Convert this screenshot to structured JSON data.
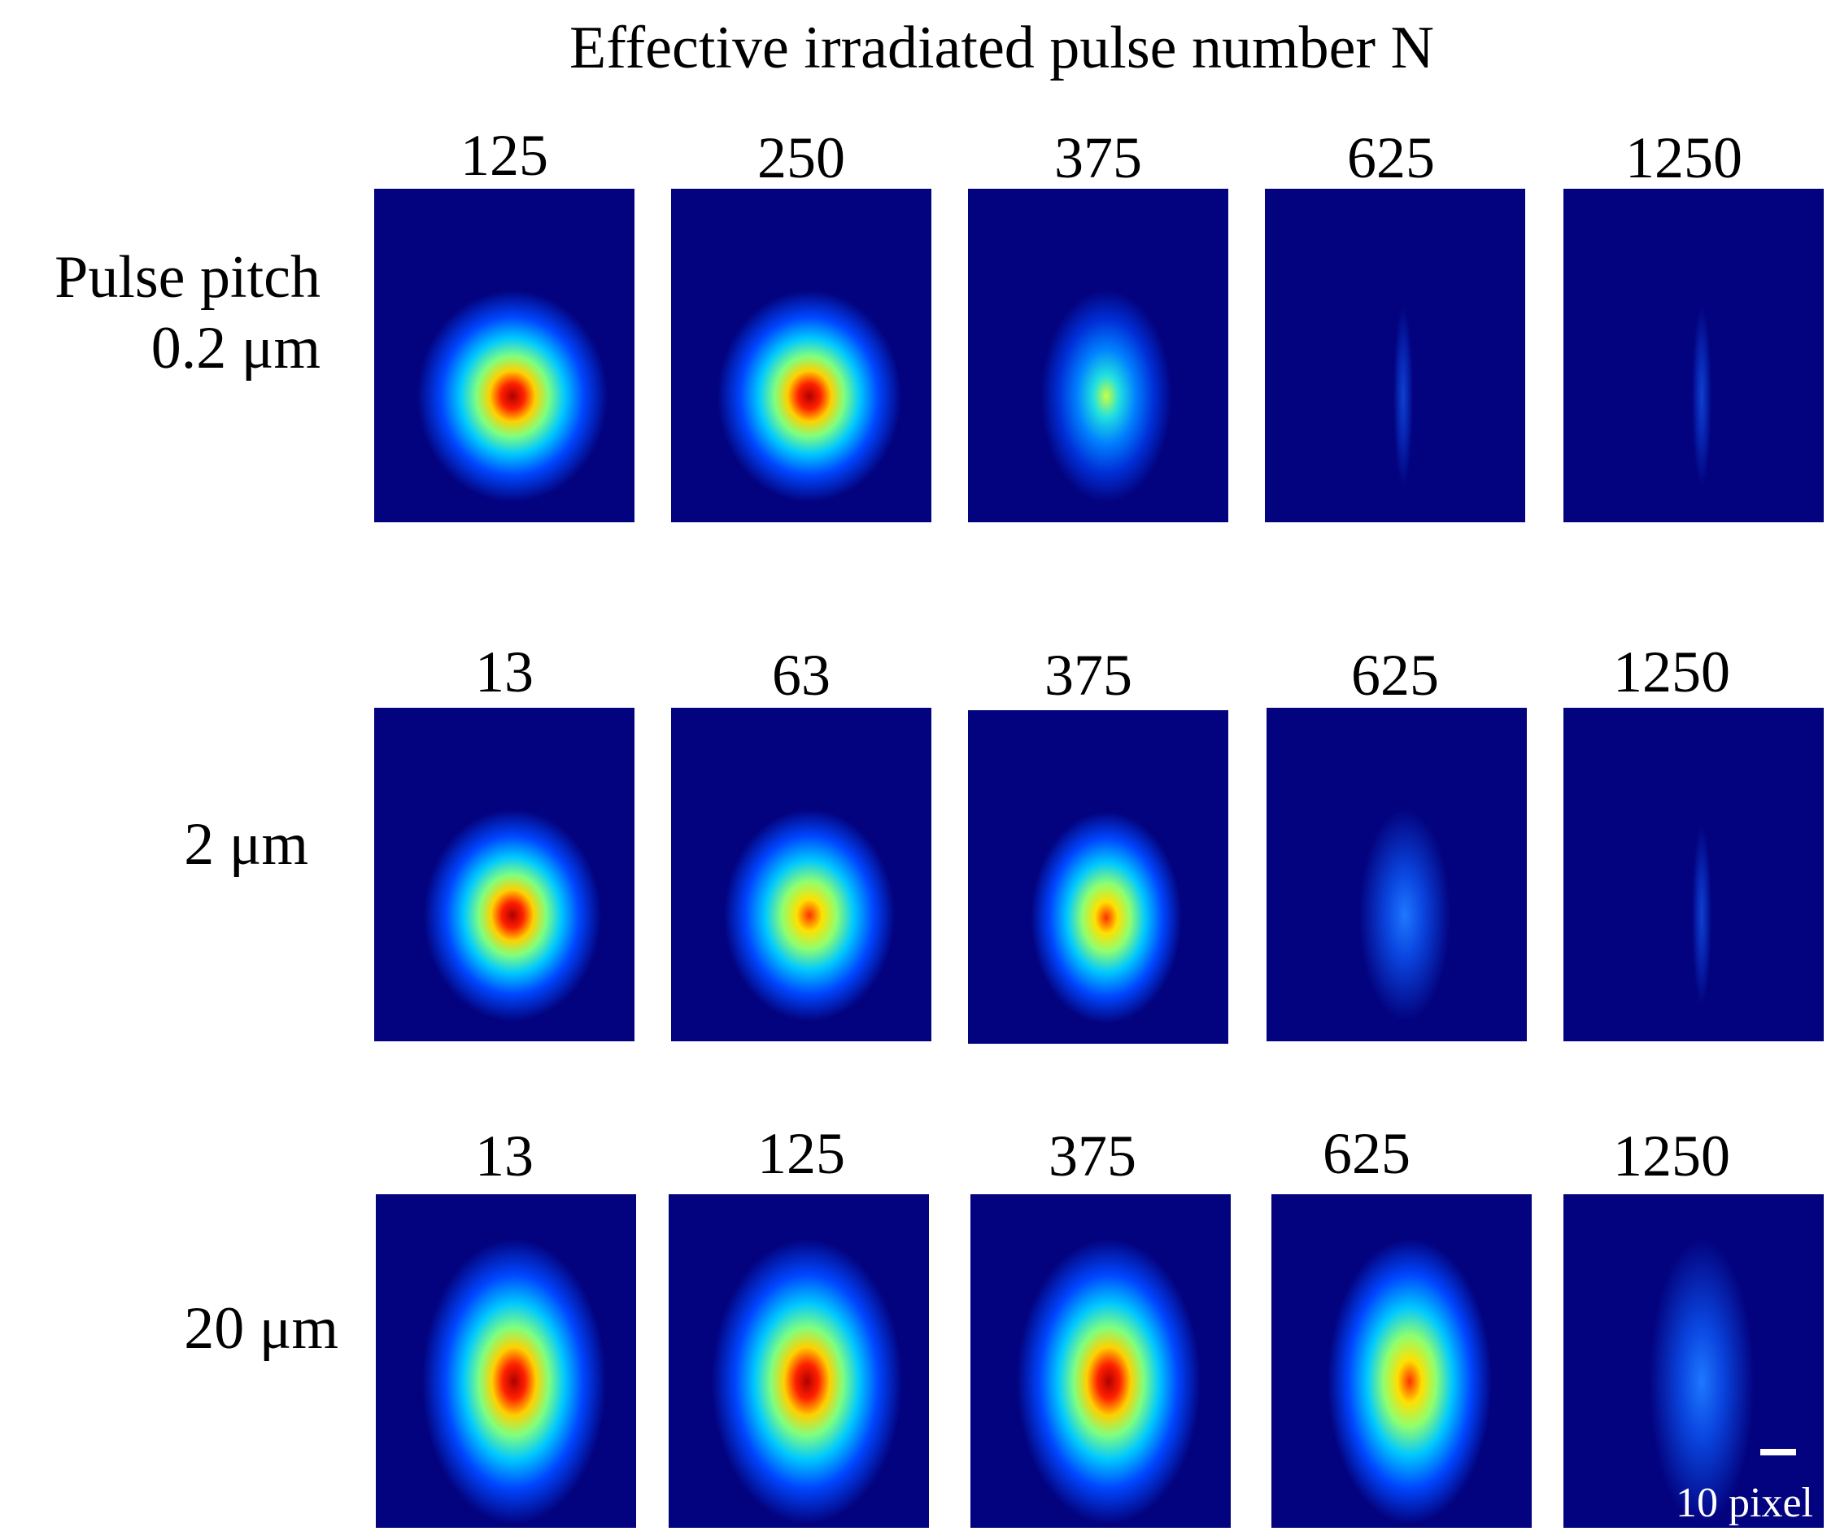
{
  "title": "Effective irradiated pulse number N",
  "rows": [
    {
      "label_line1": "Pulse pitch",
      "label_line2": "0.2 μm",
      "columns": [
        "125",
        "250",
        "375",
        "625",
        "1250"
      ],
      "intensity": [
        1.0,
        0.95,
        0.55,
        0.12,
        0.06
      ]
    },
    {
      "label_line1": "",
      "label_line2": "2 μm",
      "columns": [
        "13",
        "63",
        "375",
        "625",
        "1250"
      ],
      "intensity": [
        0.9,
        0.85,
        0.7,
        0.25,
        0.15
      ]
    },
    {
      "label_line1": "",
      "label_line2": "20 μm",
      "columns": [
        "13",
        "125",
        "375",
        "625",
        "1250"
      ],
      "intensity": [
        0.95,
        1.0,
        0.95,
        0.8,
        0.35
      ]
    }
  ],
  "scale_bar": {
    "label": "10 pixel"
  },
  "colors": {
    "background": "#03037f",
    "text": "#000000"
  }
}
